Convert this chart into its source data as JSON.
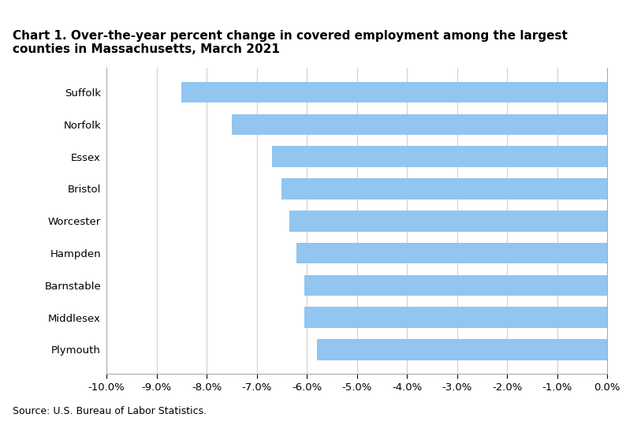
{
  "title": "Chart 1. Over-the-year percent change in covered employment among the largest\ncounties in Massachusetts, March 2021",
  "categories": [
    "Suffolk",
    "Norfolk",
    "Essex",
    "Bristol",
    "Worcester",
    "Hampden",
    "Barnstable",
    "Middlesex",
    "Plymouth"
  ],
  "values": [
    -8.5,
    -7.5,
    -6.7,
    -6.5,
    -6.35,
    -6.2,
    -6.05,
    -6.05,
    -5.8
  ],
  "bar_color": "#92c5f0",
  "xlim": [
    -10.0,
    0.0
  ],
  "xticks": [
    -10.0,
    -9.0,
    -8.0,
    -7.0,
    -6.0,
    -5.0,
    -4.0,
    -3.0,
    -2.0,
    -1.0,
    0.0
  ],
  "source": "Source: U.S. Bureau of Labor Statistics.",
  "background_color": "#ffffff",
  "grid_color": "#d0d0d0",
  "title_fontsize": 11,
  "tick_fontsize": 9.5,
  "source_fontsize": 9
}
